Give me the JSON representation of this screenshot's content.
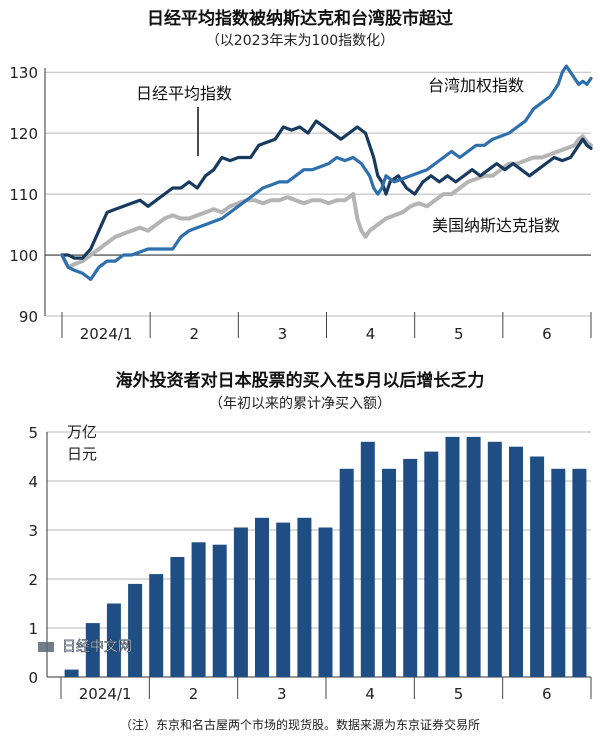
{
  "chart_data": [
    {
      "type": "line",
      "title": "日经平均指数被纳斯达克和台湾股市超过",
      "subtitle": "（以2023年末为100指数化）",
      "x_tick_labels": [
        "2024/1",
        "2",
        "3",
        "4",
        "5",
        "6"
      ],
      "y_ticks": [
        90,
        100,
        110,
        120,
        130
      ],
      "ylim": [
        90,
        132
      ],
      "grid": "horizontal",
      "series": [
        {
          "name": "日经平均指数",
          "color": "#173a5e",
          "points": [
            [
              0,
              100
            ],
            [
              3,
              100
            ],
            [
              6,
              99.5
            ],
            [
              10,
              99.5
            ],
            [
              14,
              101
            ],
            [
              18,
              104
            ],
            [
              22,
              107
            ],
            [
              26,
              107.5
            ],
            [
              30,
              108
            ],
            [
              34,
              108.5
            ],
            [
              38,
              109
            ],
            [
              42,
              108
            ],
            [
              46,
              109
            ],
            [
              50,
              110
            ],
            [
              54,
              111
            ],
            [
              58,
              111
            ],
            [
              62,
              112
            ],
            [
              66,
              111
            ],
            [
              70,
              113
            ],
            [
              74,
              114
            ],
            [
              78,
              116
            ],
            [
              82,
              115.5
            ],
            [
              86,
              116
            ],
            [
              88,
              116
            ],
            [
              92,
              116
            ],
            [
              96,
              118
            ],
            [
              100,
              118.5
            ],
            [
              104,
              119
            ],
            [
              108,
              121
            ],
            [
              112,
              120.5
            ],
            [
              116,
              121
            ],
            [
              120,
              120
            ],
            [
              124,
              122
            ],
            [
              128,
              121
            ],
            [
              132,
              120
            ],
            [
              136,
              119
            ],
            [
              140,
              120
            ],
            [
              144,
              121
            ],
            [
              148,
              120
            ],
            [
              150,
              118
            ],
            [
              152,
              116
            ],
            [
              154,
              113
            ],
            [
              156,
              112
            ],
            [
              158,
              110
            ],
            [
              160,
              112
            ],
            [
              164,
              113
            ],
            [
              168,
              111
            ],
            [
              172,
              110
            ],
            [
              176,
              112
            ],
            [
              180,
              113
            ],
            [
              184,
              112
            ],
            [
              188,
              113
            ],
            [
              192,
              112
            ],
            [
              196,
              113
            ],
            [
              200,
              114
            ],
            [
              204,
              113
            ],
            [
              208,
              114
            ],
            [
              212,
              115
            ],
            [
              216,
              114
            ],
            [
              220,
              115
            ],
            [
              224,
              114
            ],
            [
              228,
              113
            ],
            [
              232,
              114
            ],
            [
              236,
              115
            ],
            [
              240,
              116
            ],
            [
              244,
              115.5
            ],
            [
              248,
              116
            ],
            [
              252,
              118
            ],
            [
              254,
              119
            ],
            [
              256,
              118
            ],
            [
              258,
              117.5
            ]
          ]
        },
        {
          "name": "台湾加权指数",
          "color": "#2e6fad",
          "points": [
            [
              0,
              100
            ],
            [
              3,
              98
            ],
            [
              6,
              97.5
            ],
            [
              10,
              97
            ],
            [
              14,
              96
            ],
            [
              18,
              98
            ],
            [
              22,
              99
            ],
            [
              26,
              99
            ],
            [
              30,
              100
            ],
            [
              34,
              100
            ],
            [
              38,
              100.5
            ],
            [
              42,
              101
            ],
            [
              46,
              101
            ],
            [
              50,
              101
            ],
            [
              54,
              101
            ],
            [
              58,
              103
            ],
            [
              62,
              104
            ],
            [
              66,
              104.5
            ],
            [
              70,
              105
            ],
            [
              74,
              105.5
            ],
            [
              78,
              106
            ],
            [
              82,
              107
            ],
            [
              86,
              108
            ],
            [
              90,
              109
            ],
            [
              94,
              110
            ],
            [
              98,
              111
            ],
            [
              102,
              111.5
            ],
            [
              106,
              112
            ],
            [
              110,
              112
            ],
            [
              114,
              113
            ],
            [
              118,
              114
            ],
            [
              122,
              114
            ],
            [
              126,
              114.5
            ],
            [
              130,
              115
            ],
            [
              134,
              116
            ],
            [
              138,
              115.5
            ],
            [
              142,
              116
            ],
            [
              146,
              115
            ],
            [
              150,
              113
            ],
            [
              152,
              111
            ],
            [
              154,
              110
            ],
            [
              156,
              111
            ],
            [
              158,
              113
            ],
            [
              162,
              112
            ],
            [
              166,
              112.5
            ],
            [
              170,
              113
            ],
            [
              174,
              113.5
            ],
            [
              178,
              114
            ],
            [
              182,
              115
            ],
            [
              186,
              116
            ],
            [
              190,
              117
            ],
            [
              194,
              116
            ],
            [
              198,
              117
            ],
            [
              202,
              118
            ],
            [
              206,
              118
            ],
            [
              210,
              119
            ],
            [
              214,
              119.5
            ],
            [
              218,
              120
            ],
            [
              222,
              121
            ],
            [
              226,
              122
            ],
            [
              230,
              124
            ],
            [
              234,
              125
            ],
            [
              238,
              126
            ],
            [
              242,
              128
            ],
            [
              244,
              130
            ],
            [
              246,
              131
            ],
            [
              248,
              130
            ],
            [
              250,
              129
            ],
            [
              252,
              128
            ],
            [
              254,
              128.5
            ],
            [
              256,
              128
            ],
            [
              258,
              129
            ]
          ]
        },
        {
          "name": "美国纳斯达克指数",
          "color": "#b4b4b4",
          "points": [
            [
              0,
              100
            ],
            [
              3,
              98
            ],
            [
              6,
              98.5
            ],
            [
              10,
              99
            ],
            [
              14,
              100
            ],
            [
              18,
              101
            ],
            [
              22,
              102
            ],
            [
              26,
              103
            ],
            [
              30,
              103.5
            ],
            [
              34,
              104
            ],
            [
              38,
              104.5
            ],
            [
              42,
              104
            ],
            [
              46,
              105
            ],
            [
              50,
              106
            ],
            [
              54,
              106.5
            ],
            [
              58,
              106
            ],
            [
              62,
              106
            ],
            [
              66,
              106.5
            ],
            [
              70,
              107
            ],
            [
              74,
              107.5
            ],
            [
              78,
              107
            ],
            [
              82,
              108
            ],
            [
              86,
              108.5
            ],
            [
              90,
              109
            ],
            [
              94,
              109
            ],
            [
              98,
              108.5
            ],
            [
              102,
              109
            ],
            [
              106,
              109
            ],
            [
              110,
              109.5
            ],
            [
              114,
              109
            ],
            [
              118,
              108.5
            ],
            [
              122,
              109
            ],
            [
              126,
              109
            ],
            [
              130,
              108.5
            ],
            [
              134,
              109
            ],
            [
              138,
              109
            ],
            [
              142,
              110
            ],
            [
              144,
              106
            ],
            [
              146,
              104
            ],
            [
              148,
              103
            ],
            [
              150,
              104
            ],
            [
              154,
              105
            ],
            [
              158,
              106
            ],
            [
              162,
              106.5
            ],
            [
              166,
              107
            ],
            [
              170,
              108
            ],
            [
              174,
              108.5
            ],
            [
              178,
              108
            ],
            [
              182,
              109
            ],
            [
              186,
              110
            ],
            [
              190,
              110
            ],
            [
              194,
              111
            ],
            [
              198,
              112
            ],
            [
              202,
              112.5
            ],
            [
              206,
              113
            ],
            [
              210,
              113
            ],
            [
              214,
              114
            ],
            [
              218,
              115
            ],
            [
              222,
              115
            ],
            [
              226,
              115.5
            ],
            [
              230,
              116
            ],
            [
              234,
              116
            ],
            [
              238,
              116.5
            ],
            [
              242,
              117
            ],
            [
              246,
              117.5
            ],
            [
              250,
              118
            ],
            [
              252,
              119
            ],
            [
              254,
              119.5
            ],
            [
              256,
              118.5
            ],
            [
              258,
              118
            ]
          ]
        }
      ]
    },
    {
      "type": "bar",
      "title": "海外投资者对日本股票的买入在5月以后增长乏力",
      "subtitle": "（年初以来的累计净买入额）",
      "unit_label": [
        "万亿",
        "日元"
      ],
      "x_tick_labels": [
        "2024/1",
        "2",
        "3",
        "4",
        "5",
        "6"
      ],
      "y_ticks": [
        0,
        1,
        2,
        3,
        4,
        5
      ],
      "ylim": [
        0,
        5
      ],
      "color": "#1f4e85",
      "values": [
        0.15,
        1.1,
        1.5,
        1.9,
        2.1,
        2.45,
        2.75,
        2.7,
        3.05,
        3.25,
        3.15,
        3.25,
        3.05,
        4.25,
        4.8,
        4.25,
        4.45,
        4.6,
        4.9,
        4.9,
        4.8,
        4.7,
        4.5,
        4.25,
        4.25
      ]
    }
  ],
  "watermark": "日经中文网",
  "note": "（注）东京和名古屋两个市场的现货股。数据来源为东京证券交易所"
}
